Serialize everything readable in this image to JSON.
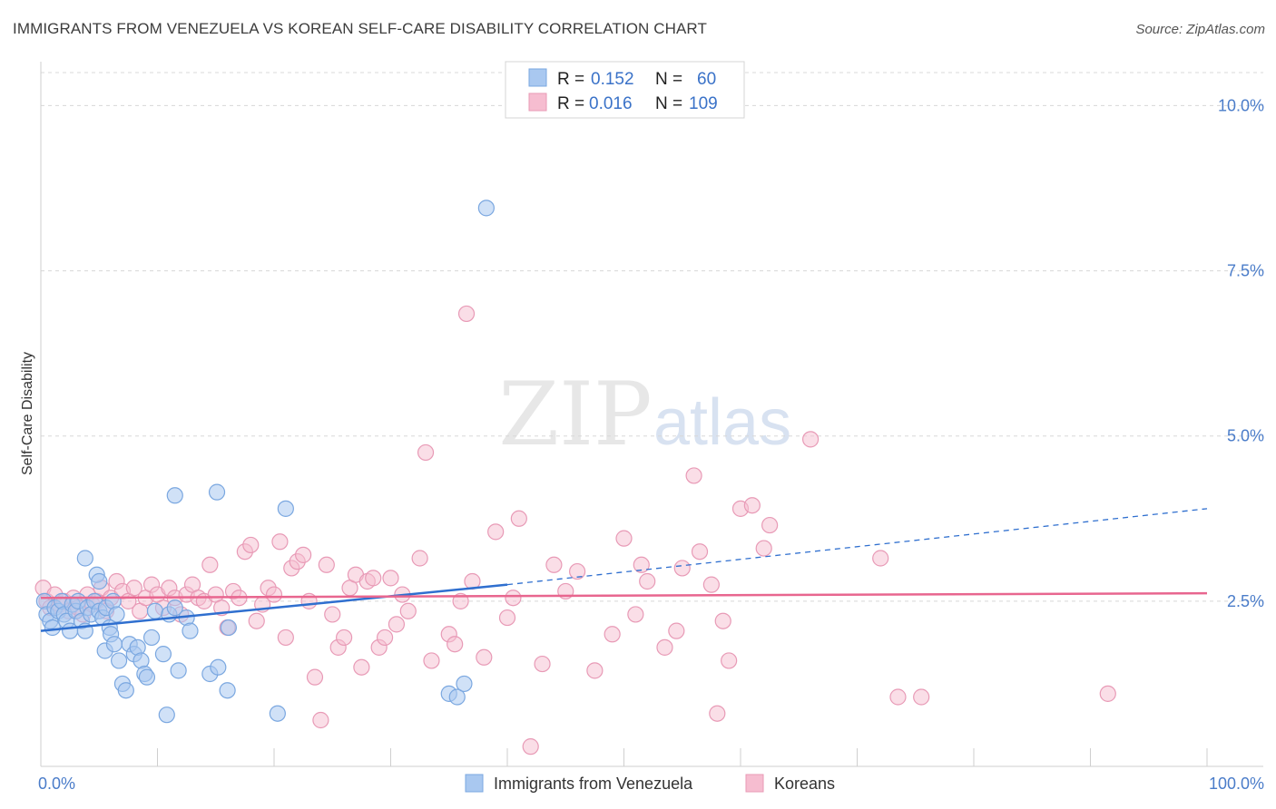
{
  "header": {
    "title": "IMMIGRANTS FROM VENEZUELA VS KOREAN SELF-CARE DISABILITY CORRELATION CHART",
    "source": "Source: ZipAtlas.com"
  },
  "watermark": {
    "zip": "ZIP",
    "atlas": "atlas"
  },
  "colors": {
    "venezuela_fill": "#a9c8f0",
    "venezuela_stroke": "#7aa7e0",
    "venezuela_line": "#2f6fcf",
    "korean_fill": "#f6bdd0",
    "korean_stroke": "#e89ab6",
    "korean_line": "#e8668f",
    "axis_text": "#4a7cc9",
    "grid": "#d8d8d8"
  },
  "chart_data": {
    "type": "scatter",
    "xlabel": "",
    "ylabel": "Self-Care Disability",
    "xlim": [
      0,
      100
    ],
    "ylim": [
      0,
      10.5
    ],
    "x_tick_labels": [
      "0.0%",
      "100.0%"
    ],
    "y_ticks": [
      2.5,
      5.0,
      7.5,
      10.0
    ],
    "y_tick_labels": [
      "2.5%",
      "5.0%",
      "7.5%",
      "10.0%"
    ],
    "legend": {
      "position": "top-center",
      "entries": [
        {
          "r_label": "R =",
          "r_value": "0.152",
          "n_label": "N =",
          "n_value": "60"
        },
        {
          "r_label": "R =",
          "r_value": "0.016",
          "n_label": "N =",
          "n_value": "109"
        }
      ]
    },
    "bottom_legend": [
      "Immigrants from Venezuela",
      "Koreans"
    ],
    "series": [
      {
        "name": "Immigrants from Venezuela",
        "trend": {
          "x0": 0,
          "y0": 2.05,
          "x1": 40,
          "y1": 2.75,
          "dashed_to_x": 100,
          "dashed_to_y": 3.9
        },
        "points": [
          [
            0.3,
            2.5
          ],
          [
            0.5,
            2.3
          ],
          [
            0.8,
            2.2
          ],
          [
            1.0,
            2.1
          ],
          [
            1.2,
            2.4
          ],
          [
            1.5,
            2.35
          ],
          [
            1.8,
            2.5
          ],
          [
            2.0,
            2.3
          ],
          [
            2.2,
            2.2
          ],
          [
            2.5,
            2.05
          ],
          [
            2.7,
            2.45
          ],
          [
            3.0,
            2.35
          ],
          [
            3.2,
            2.5
          ],
          [
            3.5,
            2.2
          ],
          [
            3.8,
            2.05
          ],
          [
            4.0,
            2.4
          ],
          [
            4.3,
            2.3
          ],
          [
            4.6,
            2.5
          ],
          [
            5.0,
            2.35
          ],
          [
            5.3,
            2.25
          ],
          [
            5.6,
            2.4
          ],
          [
            5.9,
            2.1
          ],
          [
            6.2,
            2.5
          ],
          [
            6.5,
            2.3
          ],
          [
            3.8,
            3.15
          ],
          [
            4.8,
            2.9
          ],
          [
            5.0,
            2.8
          ],
          [
            5.5,
            1.75
          ],
          [
            6.0,
            2.0
          ],
          [
            6.3,
            1.85
          ],
          [
            6.7,
            1.6
          ],
          [
            7.0,
            1.25
          ],
          [
            7.3,
            1.15
          ],
          [
            7.6,
            1.85
          ],
          [
            8.0,
            1.7
          ],
          [
            8.3,
            1.8
          ],
          [
            8.6,
            1.6
          ],
          [
            8.9,
            1.4
          ],
          [
            9.1,
            1.35
          ],
          [
            9.5,
            1.95
          ],
          [
            9.8,
            2.35
          ],
          [
            10.5,
            1.7
          ],
          [
            11.0,
            2.3
          ],
          [
            11.5,
            2.4
          ],
          [
            11.8,
            1.45
          ],
          [
            12.5,
            2.25
          ],
          [
            12.8,
            2.05
          ],
          [
            14.5,
            1.4
          ],
          [
            15.2,
            1.5
          ],
          [
            16.1,
            2.1
          ],
          [
            11.5,
            4.1
          ],
          [
            15.1,
            4.15
          ],
          [
            21.0,
            3.9
          ],
          [
            16.0,
            1.15
          ],
          [
            20.3,
            0.8
          ],
          [
            10.8,
            0.78
          ],
          [
            35.0,
            1.1
          ],
          [
            35.7,
            1.05
          ],
          [
            36.3,
            1.25
          ],
          [
            38.2,
            8.45
          ]
        ]
      },
      {
        "name": "Koreans",
        "trend": {
          "x0": 0,
          "y0": 2.55,
          "x1": 100,
          "y1": 2.62
        },
        "points": [
          [
            0.2,
            2.7
          ],
          [
            0.5,
            2.5
          ],
          [
            0.8,
            2.4
          ],
          [
            1.2,
            2.6
          ],
          [
            1.6,
            2.45
          ],
          [
            2.0,
            2.5
          ],
          [
            2.4,
            2.35
          ],
          [
            2.8,
            2.55
          ],
          [
            3.2,
            2.4
          ],
          [
            3.6,
            2.3
          ],
          [
            4.0,
            2.6
          ],
          [
            4.4,
            2.45
          ],
          [
            4.8,
            2.5
          ],
          [
            5.2,
            2.7
          ],
          [
            5.6,
            2.35
          ],
          [
            6.0,
            2.55
          ],
          [
            6.5,
            2.8
          ],
          [
            7.0,
            2.65
          ],
          [
            7.5,
            2.5
          ],
          [
            8.0,
            2.7
          ],
          [
            8.5,
            2.35
          ],
          [
            9.0,
            2.55
          ],
          [
            9.5,
            2.75
          ],
          [
            10.0,
            2.6
          ],
          [
            10.5,
            2.4
          ],
          [
            11.0,
            2.7
          ],
          [
            11.5,
            2.55
          ],
          [
            12.0,
            2.3
          ],
          [
            12.5,
            2.6
          ],
          [
            13.0,
            2.75
          ],
          [
            13.5,
            2.55
          ],
          [
            14.0,
            2.5
          ],
          [
            14.5,
            3.05
          ],
          [
            15.0,
            2.6
          ],
          [
            15.5,
            2.4
          ],
          [
            16.0,
            2.1
          ],
          [
            16.5,
            2.65
          ],
          [
            17.0,
            2.55
          ],
          [
            17.5,
            3.25
          ],
          [
            18.0,
            3.35
          ],
          [
            18.5,
            2.2
          ],
          [
            19.0,
            2.45
          ],
          [
            19.5,
            2.7
          ],
          [
            20.0,
            2.6
          ],
          [
            20.5,
            3.4
          ],
          [
            21.0,
            1.95
          ],
          [
            21.5,
            3.0
          ],
          [
            22.0,
            3.1
          ],
          [
            22.5,
            3.2
          ],
          [
            23.0,
            2.5
          ],
          [
            23.5,
            1.35
          ],
          [
            24.0,
            0.7
          ],
          [
            24.5,
            3.05
          ],
          [
            25.0,
            2.3
          ],
          [
            25.5,
            1.8
          ],
          [
            26.0,
            1.95
          ],
          [
            26.5,
            2.7
          ],
          [
            27.0,
            2.9
          ],
          [
            27.5,
            1.5
          ],
          [
            28.0,
            2.8
          ],
          [
            28.5,
            2.85
          ],
          [
            29.0,
            1.8
          ],
          [
            29.5,
            1.95
          ],
          [
            30.0,
            2.85
          ],
          [
            30.5,
            2.15
          ],
          [
            31.0,
            2.6
          ],
          [
            31.5,
            2.35
          ],
          [
            32.5,
            3.15
          ],
          [
            33.0,
            4.75
          ],
          [
            33.5,
            1.6
          ],
          [
            35.0,
            2.0
          ],
          [
            35.5,
            1.85
          ],
          [
            36.0,
            2.5
          ],
          [
            36.5,
            6.85
          ],
          [
            37.0,
            2.8
          ],
          [
            38.0,
            1.65
          ],
          [
            39.0,
            3.55
          ],
          [
            40.0,
            2.25
          ],
          [
            40.5,
            2.55
          ],
          [
            41.0,
            3.75
          ],
          [
            42.0,
            0.3
          ],
          [
            43.0,
            1.55
          ],
          [
            44.0,
            3.05
          ],
          [
            45.0,
            2.65
          ],
          [
            46.0,
            2.95
          ],
          [
            47.5,
            1.45
          ],
          [
            49.0,
            2.0
          ],
          [
            50.0,
            3.45
          ],
          [
            51.0,
            2.3
          ],
          [
            51.5,
            3.05
          ],
          [
            52.0,
            2.8
          ],
          [
            53.5,
            1.8
          ],
          [
            54.5,
            2.05
          ],
          [
            55.0,
            3.0
          ],
          [
            56.0,
            4.4
          ],
          [
            56.5,
            3.25
          ],
          [
            57.5,
            2.75
          ],
          [
            58.0,
            0.8
          ],
          [
            58.5,
            2.2
          ],
          [
            59.0,
            1.6
          ],
          [
            60.0,
            3.9
          ],
          [
            61.0,
            3.95
          ],
          [
            62.0,
            3.3
          ],
          [
            62.5,
            3.65
          ],
          [
            66.0,
            4.95
          ],
          [
            72.0,
            3.15
          ],
          [
            73.5,
            1.05
          ],
          [
            75.5,
            1.05
          ],
          [
            91.5,
            1.1
          ]
        ]
      }
    ]
  }
}
